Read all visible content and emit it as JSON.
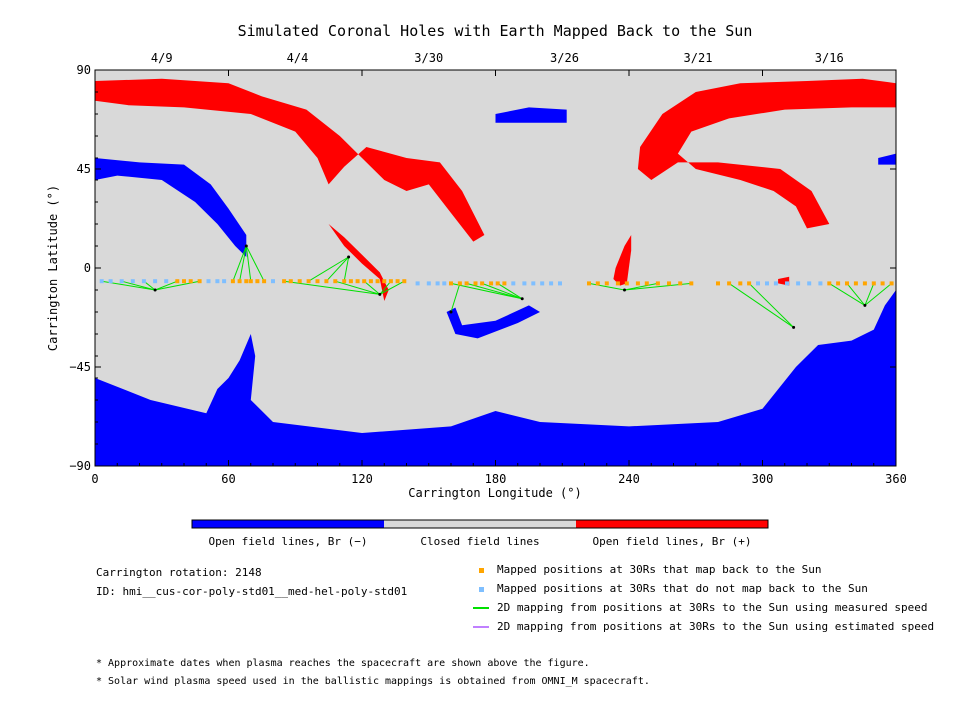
{
  "chart_data": {
    "type": "map",
    "title": "Simulated Coronal Holes with Earth Mapped Back to the Sun",
    "xlabel": "Carrington Longitude (°)",
    "ylabel": "Carrington Latitude (°)",
    "xlim": [
      0,
      360
    ],
    "ylim": [
      -90,
      90
    ],
    "x_ticks": [
      0,
      60,
      120,
      180,
      240,
      300,
      360
    ],
    "y_ticks": [
      -90,
      -45,
      0,
      45,
      90
    ],
    "x_tick_labels": [
      "0",
      "60",
      "120",
      "180",
      "240",
      "300",
      "360"
    ],
    "y_tick_labels": [
      "−90",
      "−45",
      "0",
      "45",
      "90"
    ],
    "top_date_ticks": [
      {
        "label": "4/9",
        "lon": 30
      },
      {
        "label": "4/4",
        "lon": 91
      },
      {
        "label": "3/30",
        "lon": 150
      },
      {
        "label": "3/26",
        "lon": 211
      },
      {
        "label": "3/21",
        "lon": 271
      },
      {
        "label": "3/16",
        "lon": 330
      }
    ],
    "colorbar": [
      {
        "label": "Open field lines, Br (−)",
        "color": "#0000ff"
      },
      {
        "label": "Closed field lines",
        "color": "#d9d9d9"
      },
      {
        "label": "Open field lines, Br (+)",
        "color": "#ff0000"
      }
    ],
    "background_color": "#d9d9d9",
    "coronal_holes": [
      {
        "polarity": "positive",
        "color": "#ff0000",
        "points": [
          [
            0,
            85
          ],
          [
            30,
            86
          ],
          [
            60,
            84
          ],
          [
            75,
            78
          ],
          [
            95,
            72
          ],
          [
            110,
            60
          ],
          [
            120,
            50
          ],
          [
            130,
            40
          ],
          [
            140,
            35
          ],
          [
            150,
            38
          ],
          [
            160,
            25
          ],
          [
            170,
            12
          ],
          [
            175,
            15
          ],
          [
            165,
            35
          ],
          [
            155,
            48
          ],
          [
            140,
            50
          ],
          [
            122,
            55
          ],
          [
            112,
            46
          ],
          [
            105,
            38
          ],
          [
            100,
            50
          ],
          [
            90,
            62
          ],
          [
            70,
            70
          ],
          [
            40,
            73
          ],
          [
            15,
            74
          ],
          [
            0,
            76
          ]
        ]
      },
      {
        "polarity": "positive",
        "color": "#ff0000",
        "points": [
          [
            245,
            55
          ],
          [
            255,
            70
          ],
          [
            270,
            80
          ],
          [
            290,
            84
          ],
          [
            320,
            85
          ],
          [
            345,
            86
          ],
          [
            360,
            84
          ],
          [
            360,
            73
          ],
          [
            340,
            73
          ],
          [
            310,
            72
          ],
          [
            285,
            68
          ],
          [
            268,
            62
          ],
          [
            262,
            52
          ],
          [
            270,
            45
          ],
          [
            290,
            40
          ],
          [
            305,
            35
          ],
          [
            315,
            28
          ],
          [
            320,
            18
          ],
          [
            330,
            20
          ],
          [
            322,
            35
          ],
          [
            308,
            45
          ],
          [
            280,
            48
          ],
          [
            262,
            48
          ],
          [
            250,
            40
          ],
          [
            244,
            45
          ]
        ]
      },
      {
        "polarity": "positive",
        "color": "#ff0000",
        "points": [
          [
            234,
            0
          ],
          [
            238,
            10
          ],
          [
            241,
            15
          ],
          [
            241,
            8
          ],
          [
            239,
            -7
          ],
          [
            236,
            -8
          ],
          [
            233,
            -5
          ]
        ]
      },
      {
        "polarity": "positive",
        "color": "#ff0000",
        "points": [
          [
            105,
            20
          ],
          [
            112,
            10
          ],
          [
            120,
            2
          ],
          [
            128,
            -5
          ],
          [
            130,
            -15
          ],
          [
            132,
            -10
          ],
          [
            128,
            -2
          ],
          [
            120,
            6
          ],
          [
            112,
            14
          ]
        ]
      },
      {
        "polarity": "positive",
        "color": "#ff0000",
        "points": [
          [
            307,
            -5
          ],
          [
            312,
            -4
          ],
          [
            312,
            -8
          ],
          [
            307,
            -7
          ]
        ]
      },
      {
        "polarity": "negative",
        "color": "#0000ff",
        "points": [
          [
            0,
            -50
          ],
          [
            25,
            -60
          ],
          [
            50,
            -66
          ],
          [
            55,
            -55
          ],
          [
            60,
            -50
          ],
          [
            65,
            -42
          ],
          [
            70,
            -30
          ],
          [
            72,
            -40
          ],
          [
            70,
            -60
          ],
          [
            80,
            -70
          ],
          [
            120,
            -75
          ],
          [
            160,
            -72
          ],
          [
            180,
            -65
          ],
          [
            200,
            -70
          ],
          [
            240,
            -72
          ],
          [
            280,
            -70
          ],
          [
            300,
            -64
          ],
          [
            315,
            -45
          ],
          [
            325,
            -35
          ],
          [
            340,
            -33
          ],
          [
            350,
            -28
          ],
          [
            355,
            -17
          ],
          [
            360,
            -10
          ],
          [
            360,
            -90
          ],
          [
            0,
            -90
          ]
        ]
      },
      {
        "polarity": "negative",
        "color": "#0000ff",
        "points": [
          [
            0,
            50
          ],
          [
            20,
            48
          ],
          [
            40,
            47
          ],
          [
            52,
            38
          ],
          [
            60,
            27
          ],
          [
            68,
            15
          ],
          [
            68,
            5
          ],
          [
            63,
            10
          ],
          [
            55,
            20
          ],
          [
            45,
            30
          ],
          [
            30,
            40
          ],
          [
            10,
            42
          ],
          [
            0,
            40
          ]
        ]
      },
      {
        "polarity": "negative",
        "color": "#0000ff",
        "points": [
          [
            158,
            -20
          ],
          [
            162,
            -30
          ],
          [
            172,
            -32
          ],
          [
            190,
            -25
          ],
          [
            200,
            -20
          ],
          [
            195,
            -17
          ],
          [
            180,
            -24
          ],
          [
            165,
            -26
          ],
          [
            162,
            -18
          ]
        ]
      },
      {
        "polarity": "negative",
        "color": "#0000ff",
        "points": [
          [
            180,
            70
          ],
          [
            195,
            73
          ],
          [
            212,
            72
          ],
          [
            212,
            66
          ],
          [
            195,
            66
          ],
          [
            180,
            66
          ]
        ]
      },
      {
        "polarity": "negative",
        "color": "#0000ff",
        "points": [
          [
            352,
            50
          ],
          [
            360,
            52
          ],
          [
            360,
            47
          ],
          [
            352,
            47
          ]
        ]
      }
    ],
    "mapped_positions_orange": [
      [
        37,
        -6
      ],
      [
        40,
        -6
      ],
      [
        43,
        -6
      ],
      [
        47,
        -6
      ],
      [
        62,
        -6
      ],
      [
        65,
        -6
      ],
      [
        68,
        -6
      ],
      [
        70,
        -6
      ],
      [
        73,
        -6
      ],
      [
        76,
        -6
      ],
      [
        85,
        -6
      ],
      [
        88,
        -6
      ],
      [
        92,
        -6
      ],
      [
        96,
        -6
      ],
      [
        100,
        -6
      ],
      [
        104,
        -6
      ],
      [
        108,
        -6
      ],
      [
        112,
        -6
      ],
      [
        115,
        -6
      ],
      [
        118,
        -6
      ],
      [
        121,
        -6
      ],
      [
        124,
        -6
      ],
      [
        127,
        -6
      ],
      [
        130,
        -6
      ],
      [
        133,
        -6
      ],
      [
        136,
        -6
      ],
      [
        139,
        -6
      ],
      [
        160,
        -7
      ],
      [
        164,
        -7
      ],
      [
        167,
        -7
      ],
      [
        171,
        -7
      ],
      [
        174,
        -7
      ],
      [
        178,
        -7
      ],
      [
        181,
        -7
      ],
      [
        184,
        -7
      ],
      [
        222,
        -7
      ],
      [
        226,
        -7
      ],
      [
        230,
        -7
      ],
      [
        235,
        -7
      ],
      [
        239,
        -7
      ],
      [
        244,
        -7
      ],
      [
        248,
        -7
      ],
      [
        253,
        -7
      ],
      [
        258,
        -7
      ],
      [
        263,
        -7
      ],
      [
        268,
        -7
      ],
      [
        280,
        -7
      ],
      [
        285,
        -7
      ],
      [
        290,
        -7
      ],
      [
        294,
        -7
      ],
      [
        330,
        -7
      ],
      [
        334,
        -7
      ],
      [
        338,
        -7
      ],
      [
        342,
        -7
      ],
      [
        346,
        -7
      ],
      [
        350,
        -7
      ],
      [
        354,
        -7
      ],
      [
        358,
        -7
      ]
    ],
    "mapped_positions_blue": [
      [
        3,
        -6
      ],
      [
        7,
        -6
      ],
      [
        12,
        -6
      ],
      [
        17,
        -6
      ],
      [
        22,
        -6
      ],
      [
        27,
        -6
      ],
      [
        32,
        -6
      ],
      [
        51,
        -6
      ],
      [
        55,
        -6
      ],
      [
        58,
        -6
      ],
      [
        80,
        -6
      ],
      [
        145,
        -7
      ],
      [
        150,
        -7
      ],
      [
        154,
        -7
      ],
      [
        157,
        -7
      ],
      [
        188,
        -7
      ],
      [
        193,
        -7
      ],
      [
        197,
        -7
      ],
      [
        201,
        -7
      ],
      [
        205,
        -7
      ],
      [
        209,
        -7
      ],
      [
        298,
        -7
      ],
      [
        302,
        -7
      ],
      [
        306,
        -7
      ],
      [
        311,
        -7
      ],
      [
        316,
        -7
      ],
      [
        321,
        -7
      ],
      [
        326,
        -7
      ]
    ],
    "mapping_lines_measured": [
      {
        "footpoint": [
          27,
          -10
        ],
        "from": [
          3,
          -6
        ]
      },
      {
        "footpoint": [
          27,
          -10
        ],
        "from": [
          12,
          -6
        ]
      },
      {
        "footpoint": [
          27,
          -10
        ],
        "from": [
          22,
          -6
        ]
      },
      {
        "footpoint": [
          27,
          -10
        ],
        "from": [
          37,
          -6
        ]
      },
      {
        "footpoint": [
          27,
          -10
        ],
        "from": [
          47,
          -6
        ]
      },
      {
        "footpoint": [
          68,
          10
        ],
        "from": [
          62,
          -6
        ]
      },
      {
        "footpoint": [
          68,
          10
        ],
        "from": [
          65,
          -6
        ]
      },
      {
        "footpoint": [
          68,
          10
        ],
        "from": [
          70,
          -6
        ]
      },
      {
        "footpoint": [
          68,
          10
        ],
        "from": [
          76,
          -6
        ]
      },
      {
        "footpoint": [
          114,
          5
        ],
        "from": [
          96,
          -6
        ]
      },
      {
        "footpoint": [
          114,
          5
        ],
        "from": [
          104,
          -6
        ]
      },
      {
        "footpoint": [
          114,
          5
        ],
        "from": [
          112,
          -6
        ]
      },
      {
        "footpoint": [
          128,
          -12
        ],
        "from": [
          85,
          -6
        ]
      },
      {
        "footpoint": [
          128,
          -12
        ],
        "from": [
          108,
          -6
        ]
      },
      {
        "footpoint": [
          128,
          -12
        ],
        "from": [
          121,
          -6
        ]
      },
      {
        "footpoint": [
          128,
          -12
        ],
        "from": [
          133,
          -6
        ]
      },
      {
        "footpoint": [
          128,
          -12
        ],
        "from": [
          139,
          -6
        ]
      },
      {
        "footpoint": [
          192,
          -14
        ],
        "from": [
          160,
          -7
        ]
      },
      {
        "footpoint": [
          192,
          -14
        ],
        "from": [
          167,
          -7
        ]
      },
      {
        "footpoint": [
          192,
          -14
        ],
        "from": [
          174,
          -7
        ]
      },
      {
        "footpoint": [
          192,
          -14
        ],
        "from": [
          181,
          -7
        ]
      },
      {
        "footpoint": [
          160,
          -20
        ],
        "from": [
          164,
          -7
        ]
      },
      {
        "footpoint": [
          238,
          -10
        ],
        "from": [
          222,
          -7
        ]
      },
      {
        "footpoint": [
          238,
          -10
        ],
        "from": [
          253,
          -7
        ]
      },
      {
        "footpoint": [
          238,
          -10
        ],
        "from": [
          268,
          -7
        ]
      },
      {
        "footpoint": [
          314,
          -27
        ],
        "from": [
          285,
          -7
        ]
      },
      {
        "footpoint": [
          314,
          -27
        ],
        "from": [
          294,
          -7
        ]
      },
      {
        "footpoint": [
          346,
          -17
        ],
        "from": [
          330,
          -7
        ]
      },
      {
        "footpoint": [
          346,
          -17
        ],
        "from": [
          338,
          -7
        ]
      },
      {
        "footpoint": [
          346,
          -17
        ],
        "from": [
          350,
          -7
        ]
      },
      {
        "footpoint": [
          346,
          -17
        ],
        "from": [
          358,
          -7
        ]
      }
    ],
    "legend": [
      {
        "label": "Mapped positions at 30Rs that map back to the Sun",
        "marker": "square",
        "color": "#ffa500"
      },
      {
        "label": "Mapped positions at 30Rs that do not map back to the Sun",
        "marker": "square",
        "color": "#7fbfff"
      },
      {
        "label": "2D mapping from positions at 30Rs to the Sun using measured speed",
        "marker": "line",
        "color": "#00e000"
      },
      {
        "label": "2D mapping from positions at 30Rs to the Sun using estimated speed",
        "marker": "line",
        "color": "#c080ff"
      }
    ]
  },
  "info": {
    "rotation": "Carrington rotation: 2148",
    "id": "ID: hmi__cus-cor-poly-std01__med-hel-poly-std01"
  },
  "notes": [
    "* Approximate dates when plasma reaches the spacecraft are shown above the figure.",
    "* Solar wind plasma speed used in the ballistic mappings is obtained from OMNI_M spacecraft."
  ]
}
